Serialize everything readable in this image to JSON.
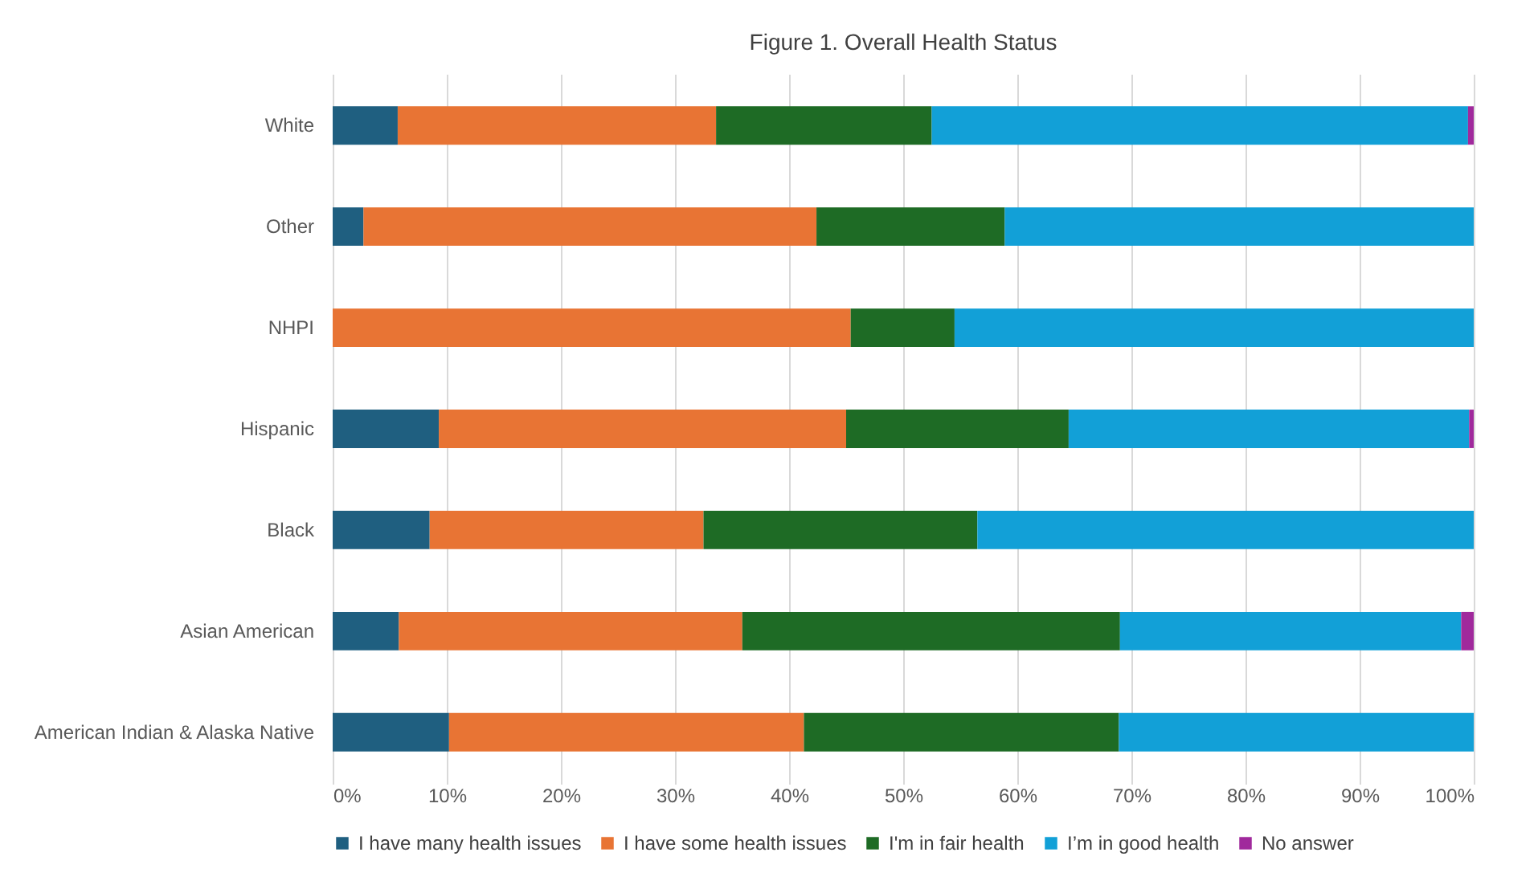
{
  "chart_data": {
    "type": "bar",
    "orientation": "horizontal",
    "stacked": true,
    "title": "Figure 1. Overall Health Status",
    "categories": [
      "White",
      "Other",
      "NHPI",
      "Hispanic",
      "Black",
      "Asian American",
      "American Indian & Alaska Native"
    ],
    "series": [
      {
        "name": "I have many health issues",
        "color": "#1f5f80",
        "values": [
          5.7,
          2.7,
          0,
          9.3,
          8.5,
          5.8,
          10.2
        ]
      },
      {
        "name": "I have some health issues",
        "color": "#e87434",
        "values": [
          27.9,
          39.7,
          45.4,
          35.7,
          24.0,
          30.1,
          31.1
        ]
      },
      {
        "name": "I'm in fair health",
        "color": "#1e6b25",
        "values": [
          18.9,
          16.5,
          9.1,
          19.5,
          24.0,
          33.1,
          27.6
        ]
      },
      {
        "name": "I’m in good health",
        "color": "#12a0d7",
        "values": [
          47.0,
          41.1,
          45.5,
          35.1,
          43.5,
          29.9,
          31.1
        ]
      },
      {
        "name": "No answer",
        "color": "#a0299c",
        "values": [
          0.5,
          0,
          0,
          0.4,
          0,
          1.1,
          0
        ]
      }
    ],
    "xlim": [
      0,
      100
    ],
    "xticks": [
      {
        "value": 0,
        "label": "0%"
      },
      {
        "value": 10,
        "label": "10%"
      },
      {
        "value": 20,
        "label": "20%"
      },
      {
        "value": 30,
        "label": "30%"
      },
      {
        "value": 40,
        "label": "40%"
      },
      {
        "value": 50,
        "label": "50%"
      },
      {
        "value": 60,
        "label": "60%"
      },
      {
        "value": 70,
        "label": "70%"
      },
      {
        "value": 80,
        "label": "80%"
      },
      {
        "value": 90,
        "label": "90%"
      },
      {
        "value": 100,
        "label": "100%"
      }
    ],
    "grid": "x",
    "legend": "bottom"
  }
}
